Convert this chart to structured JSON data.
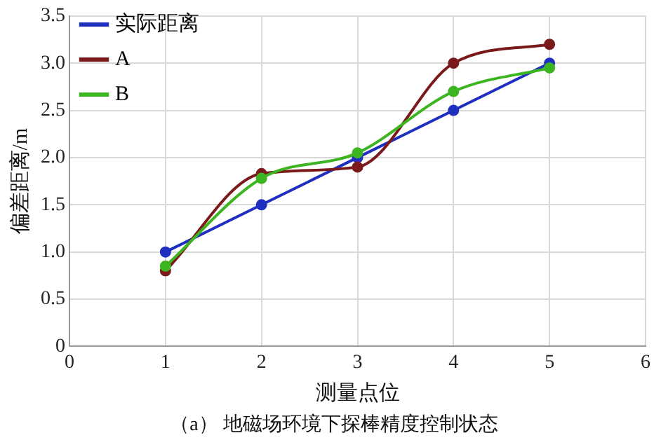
{
  "chart_data": {
    "type": "line",
    "xlabel": "测量点位",
    "ylabel": "偏差距离/m",
    "x": [
      1,
      2,
      3,
      4,
      5
    ],
    "series": [
      {
        "name": "实际距离",
        "color": "#1f2fbf",
        "values": [
          1.0,
          1.5,
          2.0,
          2.5,
          3.0
        ]
      },
      {
        "name": "A",
        "color": "#7a1a1a",
        "values": [
          0.8,
          1.83,
          1.9,
          3.0,
          3.2
        ]
      },
      {
        "name": "B",
        "color": "#3cb521",
        "values": [
          0.85,
          1.78,
          2.05,
          2.7,
          2.95
        ]
      }
    ],
    "xlim": [
      0,
      6
    ],
    "xticks": [
      0,
      1,
      2,
      3,
      4,
      5,
      6
    ],
    "ylim": [
      0,
      3.5
    ],
    "yticks": [
      0,
      0.5,
      {
        "value": 1,
        "label": "1.0"
      },
      1.5,
      {
        "value": 2,
        "label": "2.0"
      },
      2.5,
      {
        "value": 3,
        "label": "3.0"
      },
      3.5
    ],
    "grid": true,
    "legend": "top left",
    "marker": "circle",
    "line_style": "solid",
    "annotations": [
      "（a） 地磁场环境下探棒精度控制状态"
    ]
  }
}
